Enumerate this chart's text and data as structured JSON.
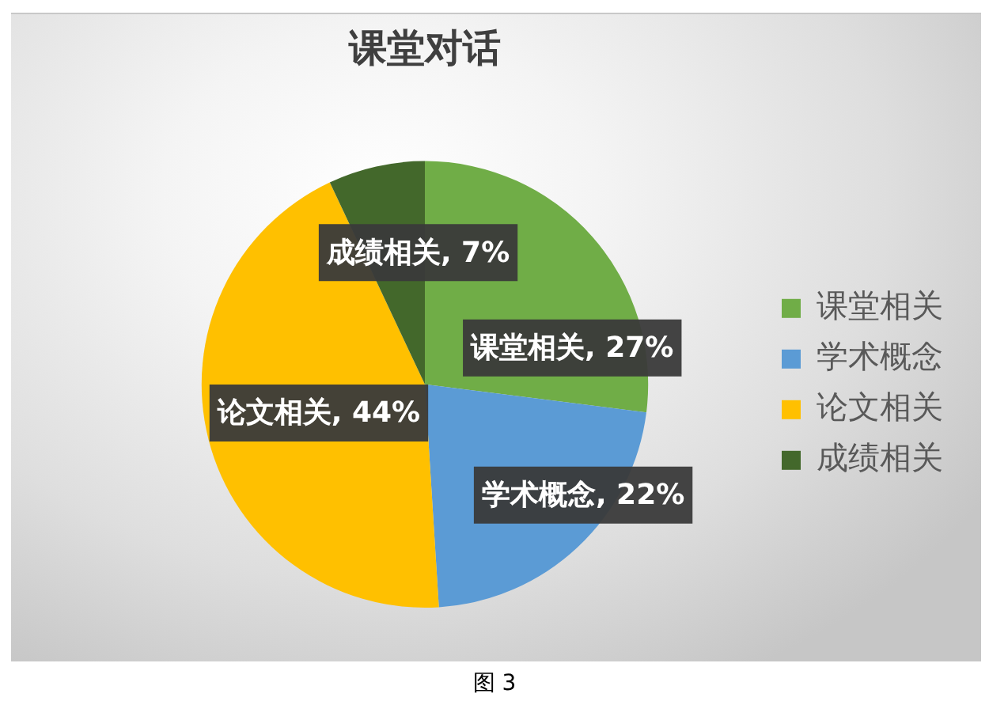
{
  "chart_data": {
    "type": "pie",
    "title": "课堂对话",
    "categories": [
      "课堂相关",
      "学术概念",
      "论文相关",
      "成绩相关"
    ],
    "values": [
      27,
      22,
      44,
      7
    ],
    "colors": [
      "#70ad47",
      "#5b9bd5",
      "#ffc000",
      "#43682b"
    ],
    "value_labels": [
      "课堂相关, 27%",
      "学术概念, 22%",
      "论文相关, 44%",
      "成绩相关, 7%"
    ],
    "legend": "right",
    "annotations": [
      "图 3"
    ]
  }
}
